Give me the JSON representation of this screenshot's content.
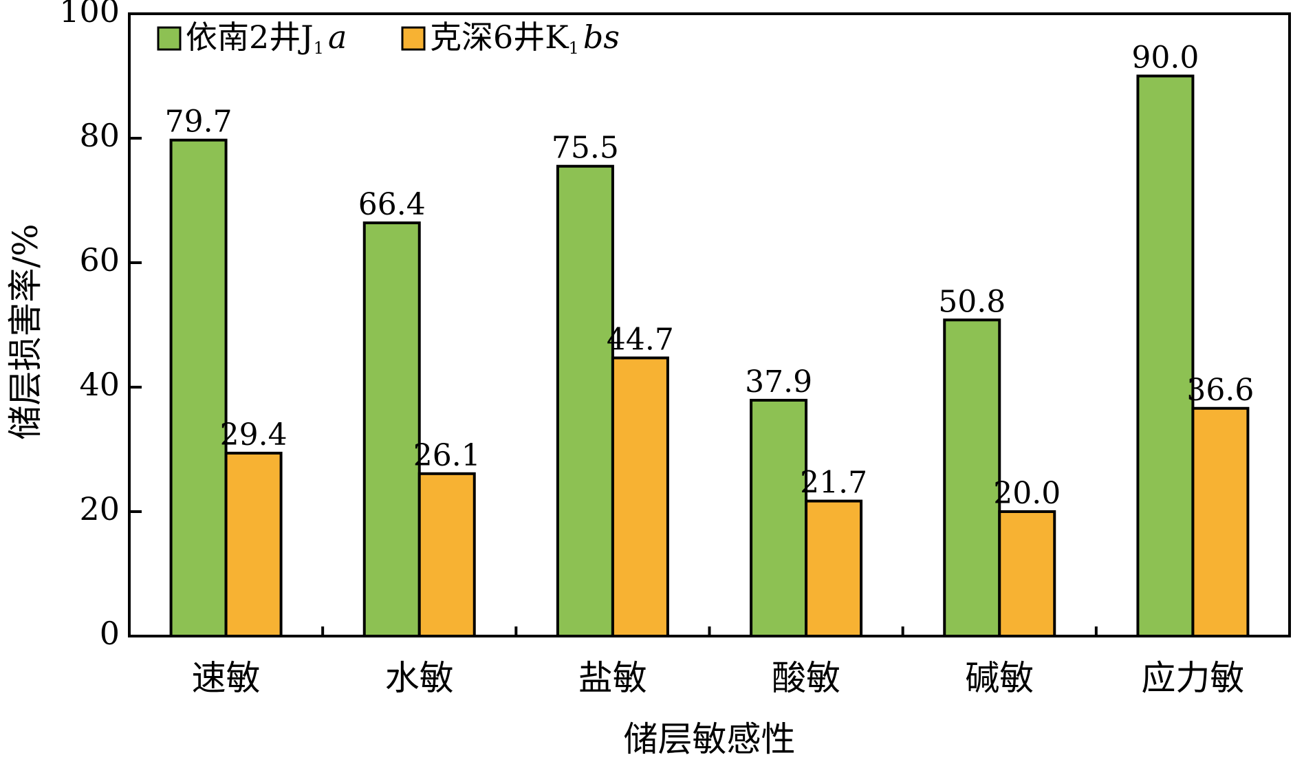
{
  "chart_data": {
    "type": "bar",
    "title": "",
    "xlabel": "储层敏感性",
    "ylabel": "储层损害率/%",
    "ylim": [
      0,
      100
    ],
    "yticks": [
      "0",
      "20",
      "40",
      "60",
      "80",
      "100"
    ],
    "categories": [
      "速敏",
      "水敏",
      "盐敏",
      "酸敏",
      "碱敏",
      "应力敏"
    ],
    "series": [
      {
        "name": "依南2井J1a",
        "legend": {
          "main": "依南2井J",
          "sub": "1",
          "italic": "a"
        },
        "color": "#8dc153",
        "values": [
          79.7,
          66.4,
          75.5,
          37.9,
          50.8,
          90.0
        ],
        "labels": [
          "79.7",
          "66.4",
          "75.5",
          "37.9",
          "50.8",
          "90.0"
        ]
      },
      {
        "name": "克深6井K1bs",
        "legend": {
          "main": "克深6井K",
          "sub": "1",
          "italic": "bs"
        },
        "color": "#f7b233",
        "values": [
          29.4,
          26.1,
          44.7,
          21.7,
          20.0,
          36.6
        ],
        "labels": [
          "29.4",
          "26.1",
          "44.7",
          "21.7",
          "20.0",
          "36.6"
        ]
      }
    ],
    "legend_position": "top-left",
    "grid": false
  }
}
